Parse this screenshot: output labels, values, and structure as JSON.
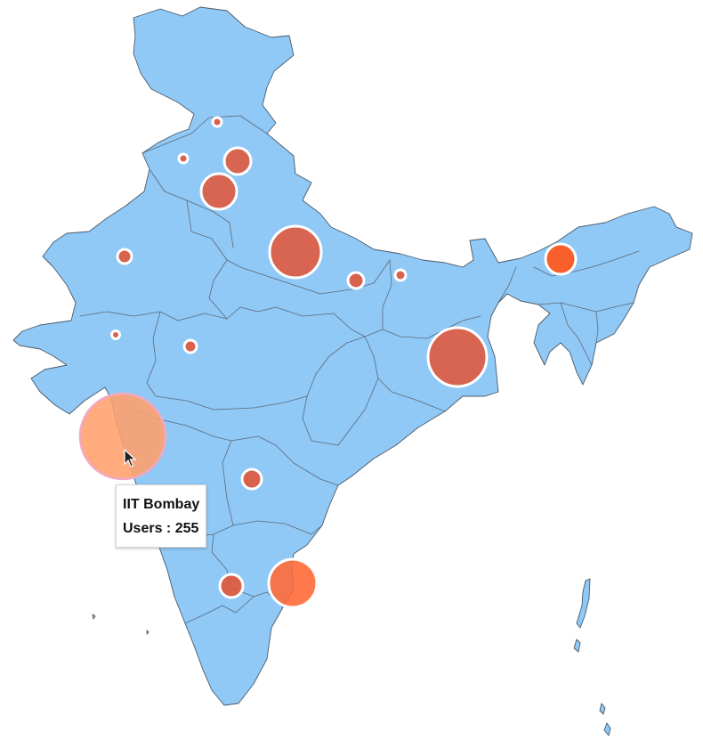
{
  "map": {
    "land_color": "#90c8f6",
    "border_color": "#4a5a68",
    "bubble_color": "#e0573a",
    "bubble_highlight_color": "#ff5a1f",
    "hover_color": "#ff9f6b"
  },
  "locations": [
    {
      "id": "iit-bombay",
      "value": 255
    },
    {
      "id": "kolkata",
      "value": 140
    },
    {
      "id": "delhi-up",
      "value": 110
    },
    {
      "id": "chennai",
      "value": 95
    },
    {
      "id": "haryana-delhi",
      "value": 55
    },
    {
      "id": "punjab-himachal",
      "value": 30
    },
    {
      "id": "guwahati",
      "value": 40
    },
    {
      "id": "bangalore",
      "value": 24
    },
    {
      "id": "hyderabad",
      "value": 16
    },
    {
      "id": "lucknow-east",
      "value": 10
    },
    {
      "id": "rajasthan",
      "value": 8
    },
    {
      "id": "madhya-pradesh",
      "value": 6
    },
    {
      "id": "bihar",
      "value": 4
    },
    {
      "id": "jammu",
      "value": 3
    },
    {
      "id": "punjab",
      "value": 3
    },
    {
      "id": "gujarat",
      "value": 2
    }
  ],
  "tooltip": {
    "name": "IIT Bombay",
    "value_text": "Users : 255"
  }
}
